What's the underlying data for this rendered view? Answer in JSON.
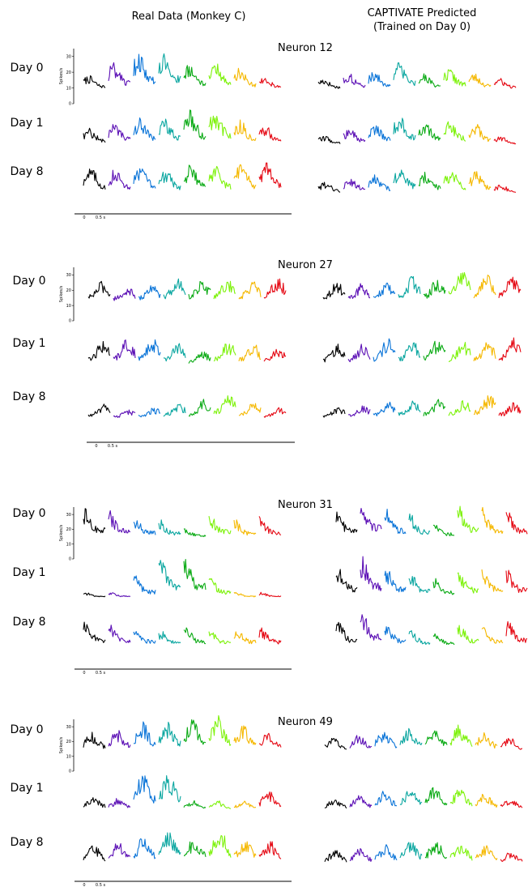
{
  "headers": {
    "left": "Real Data (Monkey C)",
    "right_line1": "CAPTIVATE Predicted",
    "right_line2": "(Trained on Day 0)"
  },
  "colors": [
    "#000000",
    "#5b0fb5",
    "#0a74d8",
    "#0aa6a0",
    "#0aaa14",
    "#7df20a",
    "#f5b800",
    "#e50914"
  ],
  "days": [
    "Day 0",
    "Day 1",
    "Day 8"
  ],
  "y_axis_label": "Spikes/s",
  "y_ticks": [
    "0",
    "10",
    "20",
    "30"
  ],
  "scale_labels": [
    "0",
    "0.5 s"
  ],
  "chart_data": [
    {
      "type": "line",
      "title": "Neuron 12",
      "panels": [
        "Real Data (Monkey C)",
        "CAPTIVATE Predicted (Trained on Day 0)"
      ],
      "rows": [
        "Day 0",
        "Day 1",
        "Day 8"
      ],
      "x_scale": "0 to 0.5 s",
      "ylim": [
        0,
        35
      ],
      "condition_peak_rates_real": [
        [
          12,
          22,
          30,
          32,
          22,
          24,
          18,
          12
        ],
        [
          14,
          18,
          22,
          22,
          28,
          30,
          20,
          16
        ],
        [
          22,
          20,
          22,
          20,
          24,
          22,
          25,
          26
        ]
      ],
      "condition_peak_rates_predicted": [
        [
          10,
          14,
          16,
          22,
          14,
          18,
          14,
          10
        ],
        [
          8,
          14,
          18,
          24,
          20,
          20,
          18,
          8
        ],
        [
          10,
          14,
          16,
          24,
          18,
          20,
          18,
          8
        ]
      ]
    },
    {
      "type": "line",
      "title": "Neuron 27",
      "panels": [
        "Real Data (Monkey C)",
        "CAPTIVATE Predicted (Trained on Day 0)"
      ],
      "rows": [
        "Day 0",
        "Day 1",
        "Day 8"
      ],
      "x_scale": "0 to 0.5 s",
      "ylim": [
        0,
        35
      ],
      "condition_peak_rates_real": [
        [
          18,
          14,
          16,
          20,
          20,
          20,
          18,
          22
        ],
        [
          20,
          22,
          22,
          18,
          12,
          20,
          18,
          16
        ],
        [
          12,
          8,
          10,
          14,
          16,
          22,
          14,
          10
        ]
      ],
      "condition_peak_rates_predicted": [
        [
          18,
          16,
          18,
          22,
          20,
          26,
          24,
          22
        ],
        [
          18,
          18,
          22,
          20,
          22,
          20,
          20,
          22
        ],
        [
          10,
          12,
          14,
          16,
          16,
          16,
          20,
          14
        ]
      ]
    },
    {
      "type": "line",
      "title": "Neuron 31",
      "panels": [
        "Real Data (Monkey C)",
        "CAPTIVATE Predicted (Trained on Day 0)"
      ],
      "rows": [
        "Day 0",
        "Day 1",
        "Day 8"
      ],
      "x_scale": "0 to 0.5 s",
      "ylim": [
        0,
        35
      ],
      "condition_peak_rates_real": [
        [
          22,
          20,
          16,
          14,
          8,
          18,
          14,
          16
        ],
        [
          4,
          4,
          16,
          30,
          30,
          14,
          4,
          4
        ],
        [
          18,
          16,
          14,
          12,
          14,
          12,
          14,
          14
        ]
      ],
      "condition_peak_rates_predicted": [
        [
          20,
          28,
          22,
          18,
          12,
          24,
          22,
          20
        ],
        [
          24,
          30,
          22,
          18,
          14,
          20,
          22,
          20
        ],
        [
          18,
          26,
          16,
          12,
          10,
          16,
          14,
          18
        ]
      ]
    },
    {
      "type": "line",
      "title": "Neuron 49",
      "panels": [
        "Real Data (Monkey C)",
        "CAPTIVATE Predicted (Trained on Day 0)"
      ],
      "rows": [
        "Day 0",
        "Day 1",
        "Day 8"
      ],
      "x_scale": "0 to 0.5 s",
      "ylim": [
        0,
        35
      ],
      "condition_peak_rates_real": [
        [
          16,
          18,
          24,
          24,
          26,
          30,
          22,
          16
        ],
        [
          12,
          10,
          30,
          30,
          8,
          8,
          8,
          16
        ],
        [
          16,
          20,
          24,
          26,
          22,
          30,
          22,
          20
        ]
      ],
      "condition_peak_rates_predicted": [
        [
          12,
          14,
          18,
          20,
          20,
          22,
          16,
          12
        ],
        [
          10,
          12,
          16,
          18,
          20,
          18,
          14,
          10
        ],
        [
          12,
          14,
          16,
          20,
          20,
          18,
          16,
          12
        ]
      ]
    }
  ]
}
